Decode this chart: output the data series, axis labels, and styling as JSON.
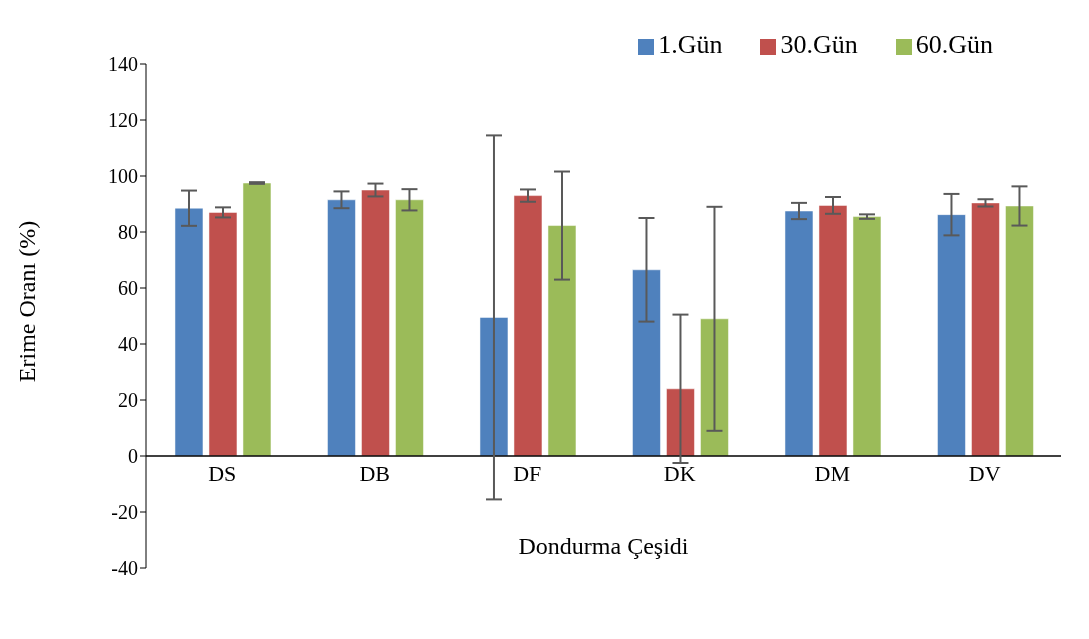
{
  "chart_data": {
    "type": "bar",
    "xlabel": "Dondurma Çeşidi",
    "ylabel": "Erime Oranı (%)",
    "categories": [
      "DS",
      "DB",
      "DF",
      "DK",
      "DM",
      "DV"
    ],
    "series": [
      {
        "name": "1.Gün",
        "color": "#4f81bd",
        "values": [
          88.5,
          91.5,
          49.5,
          66.5,
          87.5,
          86.2
        ],
        "errors": [
          6.3,
          3,
          65,
          18.5,
          2.9,
          7.4
        ]
      },
      {
        "name": "30.Gün",
        "color": "#c0504d",
        "values": [
          87,
          95,
          93,
          24,
          89.5,
          90.4
        ],
        "errors": [
          1.8,
          2.3,
          2.2,
          26.5,
          3,
          1.3
        ]
      },
      {
        "name": "60.Gün",
        "color": "#9bbb59",
        "values": [
          97.5,
          91.5,
          82.3,
          49,
          85.5,
          89.3
        ],
        "errors": [
          0.3,
          3.8,
          19.3,
          40,
          0.8,
          7
        ]
      }
    ],
    "ylim": [
      -40,
      140
    ],
    "yticks": [
      -40,
      -20,
      0,
      20,
      40,
      60,
      80,
      100,
      120,
      140
    ],
    "grid": false,
    "legend": "top right"
  }
}
